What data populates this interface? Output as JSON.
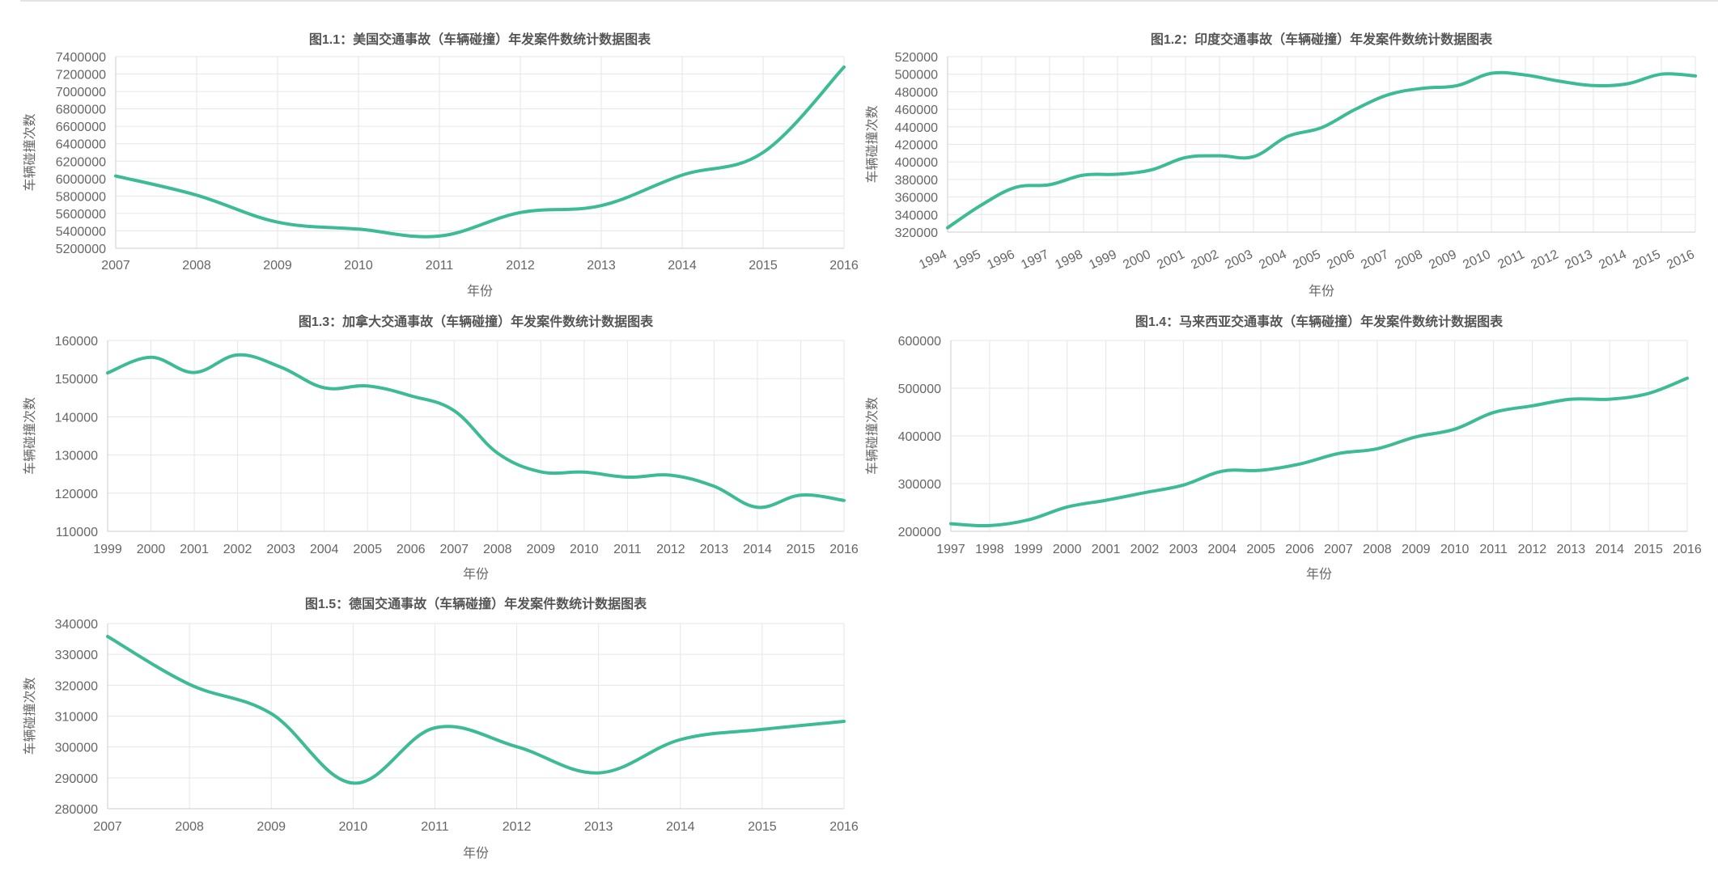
{
  "page": {
    "accent_color": "#3dba96"
  },
  "chart_data": [
    {
      "type": "line",
      "title": "图1.1：美国交通事故（车辆碰撞）年发案件数统计数据图表",
      "xlabel": "年份",
      "ylabel": "车辆碰撞次数",
      "categories": [
        "2007",
        "2008",
        "2009",
        "2010",
        "2011",
        "2012",
        "2013",
        "2014",
        "2015",
        "2016"
      ],
      "values": [
        6030000,
        5810000,
        5500000,
        5420000,
        5340000,
        5610000,
        5690000,
        6040000,
        6300000,
        7280000
      ],
      "ylim": [
        5200000,
        7400000
      ],
      "yticks": [
        7400000,
        7200000,
        7000000,
        6800000,
        6600000,
        6400000,
        6200000,
        6000000,
        5800000,
        5600000,
        5400000,
        5200000
      ],
      "rotate_x": false
    },
    {
      "type": "line",
      "title": "图1.2：印度交通事故（车辆碰撞）年发案件数统计数据图表",
      "xlabel": "年份",
      "ylabel": "车辆碰撞次数",
      "categories": [
        "1994",
        "1995",
        "1996",
        "1997",
        "1998",
        "1999",
        "2000",
        "2001",
        "2002",
        "2003",
        "2004",
        "2005",
        "2006",
        "2007",
        "2008",
        "2009",
        "2010",
        "2011",
        "2012",
        "2013",
        "2014",
        "2015",
        "2016"
      ],
      "values": [
        325000,
        351000,
        371000,
        374000,
        385000,
        386000,
        391000,
        405000,
        407000,
        406000,
        429000,
        439000,
        460000,
        477000,
        484000,
        487000,
        501000,
        499000,
        492000,
        487000,
        489000,
        500000,
        498000
      ],
      "ylim": [
        320000,
        520000
      ],
      "yticks": [
        520000,
        500000,
        480000,
        460000,
        440000,
        420000,
        400000,
        380000,
        360000,
        340000,
        320000
      ],
      "rotate_x": true
    },
    {
      "type": "line",
      "title": "图1.3：加拿大交通事故（车辆碰撞）年发案件数统计数据图表",
      "xlabel": "年份",
      "ylabel": "车辆碰撞次数",
      "categories": [
        "1999",
        "2000",
        "2001",
        "2002",
        "2003",
        "2004",
        "2005",
        "2006",
        "2007",
        "2008",
        "2009",
        "2010",
        "2011",
        "2012",
        "2013",
        "2014",
        "2015",
        "2016"
      ],
      "values": [
        151500,
        155600,
        151600,
        156200,
        153000,
        147600,
        148100,
        145500,
        141600,
        130500,
        125600,
        125500,
        124200,
        124700,
        121800,
        116300,
        119500,
        118100
      ],
      "ylim": [
        110000,
        160000
      ],
      "yticks": [
        160000,
        150000,
        140000,
        130000,
        120000,
        110000
      ],
      "rotate_x": false
    },
    {
      "type": "line",
      "title": "图1.4：马来西亚交通事故（车辆碰撞）年发案件数统计数据图表",
      "xlabel": "年份",
      "ylabel": "车辆碰撞次数",
      "categories": [
        "1997",
        "1998",
        "1999",
        "2000",
        "2001",
        "2002",
        "2003",
        "2004",
        "2005",
        "2006",
        "2007",
        "2008",
        "2009",
        "2010",
        "2011",
        "2012",
        "2013",
        "2014",
        "2015",
        "2016"
      ],
      "values": [
        216000,
        212000,
        224000,
        251000,
        265000,
        281000,
        297000,
        326000,
        328000,
        341000,
        363000,
        373000,
        398000,
        414000,
        449000,
        463000,
        477000,
        477000,
        489000,
        521000
      ],
      "ylim": [
        200000,
        600000
      ],
      "yticks": [
        600000,
        500000,
        400000,
        300000,
        200000
      ],
      "rotate_x": false
    },
    {
      "type": "line",
      "title": "图1.5：德国交通事故（车辆碰撞）年发案件数统计数据图表",
      "xlabel": "年份",
      "ylabel": "车辆碰撞次数",
      "categories": [
        "2007",
        "2008",
        "2009",
        "2010",
        "2011",
        "2012",
        "2013",
        "2014",
        "2015",
        "2016"
      ],
      "values": [
        335800,
        320300,
        310800,
        288300,
        306200,
        300100,
        291600,
        302400,
        305700,
        308300
      ],
      "ylim": [
        280000,
        340000
      ],
      "yticks": [
        340000,
        330000,
        320000,
        310000,
        300000,
        290000,
        280000
      ],
      "rotate_x": false
    }
  ]
}
